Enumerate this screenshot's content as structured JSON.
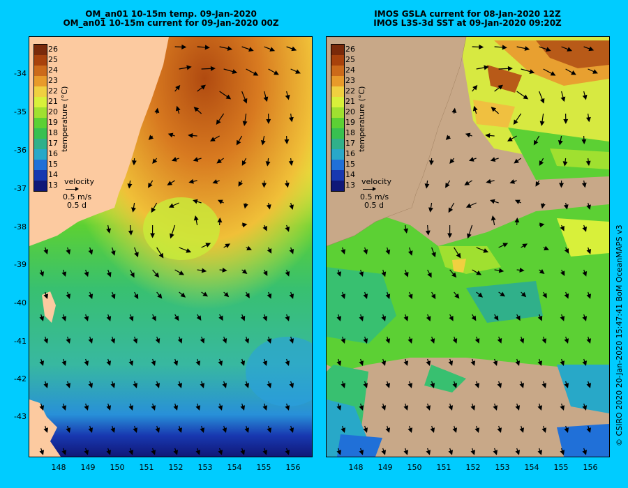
{
  "panels": [
    {
      "title_line1": "OM_an01 10-15m temp. 09-Jan-2020",
      "title_line2": "OM_an01 10-15m current for 09-Jan-2020 00Z",
      "colorbar_label": "temperature (°C)",
      "velocity_label": "velocity",
      "velocity_scale": "0.5 m/s",
      "velocity_time": "0.5 d"
    },
    {
      "title_line1": "IMOS GSLA current for 08-Jan-2020 12Z",
      "title_line2": "IMOS L3S-3d SST at 09-Jan-2020 09:20Z",
      "colorbar_label": "temperature (°C)",
      "velocity_label": "velocity",
      "velocity_scale": "0.5 m/s",
      "velocity_time": "0.5 d"
    }
  ],
  "colorbar_ticks": [
    "26",
    "25",
    "24",
    "23",
    "22",
    "21",
    "20",
    "19",
    "18",
    "17",
    "16",
    "15",
    "14",
    "13"
  ],
  "colorbar_colors": [
    "#7a2a0a",
    "#a8420c",
    "#cc6a1a",
    "#e89a2a",
    "#f0d040",
    "#d8f03a",
    "#a0e030",
    "#5cd034",
    "#38c050",
    "#30b08a",
    "#28a8c8",
    "#2070d8",
    "#1838b0",
    "#101878"
  ],
  "lat_labels": [
    "-34",
    "-35",
    "-36",
    "-37",
    "-38",
    "-39",
    "-40",
    "-41",
    "-42",
    "-43"
  ],
  "lon_labels": [
    "148",
    "149",
    "150",
    "151",
    "152",
    "153",
    "154",
    "155",
    "156"
  ],
  "credit": "© CSIRO 2020   20-Jan-2020 15:47:41 BoM OceanMAPS v3",
  "colors": {
    "background": "#00ccff",
    "land": "#fccaa0",
    "no_data": "#c8a888",
    "arrow": "#000000"
  }
}
